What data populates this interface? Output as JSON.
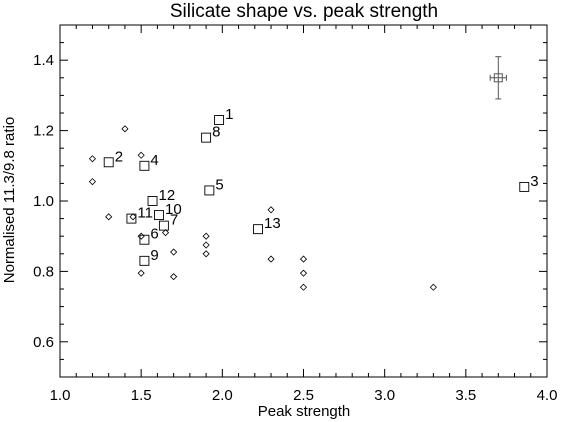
{
  "chart_data": {
    "type": "scatter",
    "title": "Silicate shape vs. peak strength",
    "xlabel": "Peak strength",
    "ylabel": "Normalised 11.3/9.8 ratio",
    "xlim": [
      1.0,
      4.0
    ],
    "ylim": [
      0.5,
      1.5
    ],
    "x_ticks": [
      1.0,
      1.5,
      2.0,
      2.5,
      3.0,
      3.5,
      4.0
    ],
    "y_ticks": [
      0.6,
      0.8,
      1.0,
      1.2,
      1.4
    ],
    "x_tick_labels": [
      "1.0",
      "1.5",
      "2.0",
      "2.5",
      "3.0",
      "3.5",
      "4.0"
    ],
    "y_tick_labels": [
      "0.6",
      "0.8",
      "1.0",
      "1.2",
      "1.4"
    ],
    "grid": false,
    "series": [
      {
        "marker": "square",
        "points": [
          {
            "label": "1",
            "x": 1.98,
            "y": 1.23
          },
          {
            "label": "2",
            "x": 1.3,
            "y": 1.11
          },
          {
            "label": "3",
            "x": 3.86,
            "y": 1.04
          },
          {
            "label": "4",
            "x": 1.52,
            "y": 1.1
          },
          {
            "label": "5",
            "x": 1.92,
            "y": 1.03
          },
          {
            "label": "6",
            "x": 1.52,
            "y": 0.89
          },
          {
            "label": "7",
            "x": 1.64,
            "y": 0.93
          },
          {
            "label": "8",
            "x": 1.9,
            "y": 1.18
          },
          {
            "label": "9",
            "x": 1.52,
            "y": 0.83
          },
          {
            "label": "10",
            "x": 1.61,
            "y": 0.96
          },
          {
            "label": "11",
            "x": 1.44,
            "y": 0.95
          },
          {
            "label": "12",
            "x": 1.57,
            "y": 1.0
          },
          {
            "label": "13",
            "x": 2.22,
            "y": 0.92
          }
        ]
      },
      {
        "marker": "diamond",
        "points": [
          {
            "x": 1.2,
            "y": 1.12
          },
          {
            "x": 1.2,
            "y": 1.055
          },
          {
            "x": 1.3,
            "y": 0.955
          },
          {
            "x": 1.4,
            "y": 1.205
          },
          {
            "x": 1.45,
            "y": 0.955
          },
          {
            "x": 1.5,
            "y": 1.13
          },
          {
            "x": 1.5,
            "y": 0.9
          },
          {
            "x": 1.5,
            "y": 0.795
          },
          {
            "x": 1.65,
            "y": 0.91
          },
          {
            "x": 1.7,
            "y": 0.855
          },
          {
            "x": 1.7,
            "y": 0.785
          },
          {
            "x": 1.9,
            "y": 0.9
          },
          {
            "x": 1.9,
            "y": 0.875
          },
          {
            "x": 1.9,
            "y": 0.85
          },
          {
            "x": 2.3,
            "y": 0.975
          },
          {
            "x": 2.3,
            "y": 0.835
          },
          {
            "x": 2.5,
            "y": 0.835
          },
          {
            "x": 2.5,
            "y": 0.795
          },
          {
            "x": 2.5,
            "y": 0.755
          },
          {
            "x": 3.3,
            "y": 0.755
          }
        ]
      }
    ],
    "error_bar_marker": {
      "x": 3.7,
      "y": 1.35,
      "xerr": 0.05,
      "yerr": 0.06
    }
  }
}
